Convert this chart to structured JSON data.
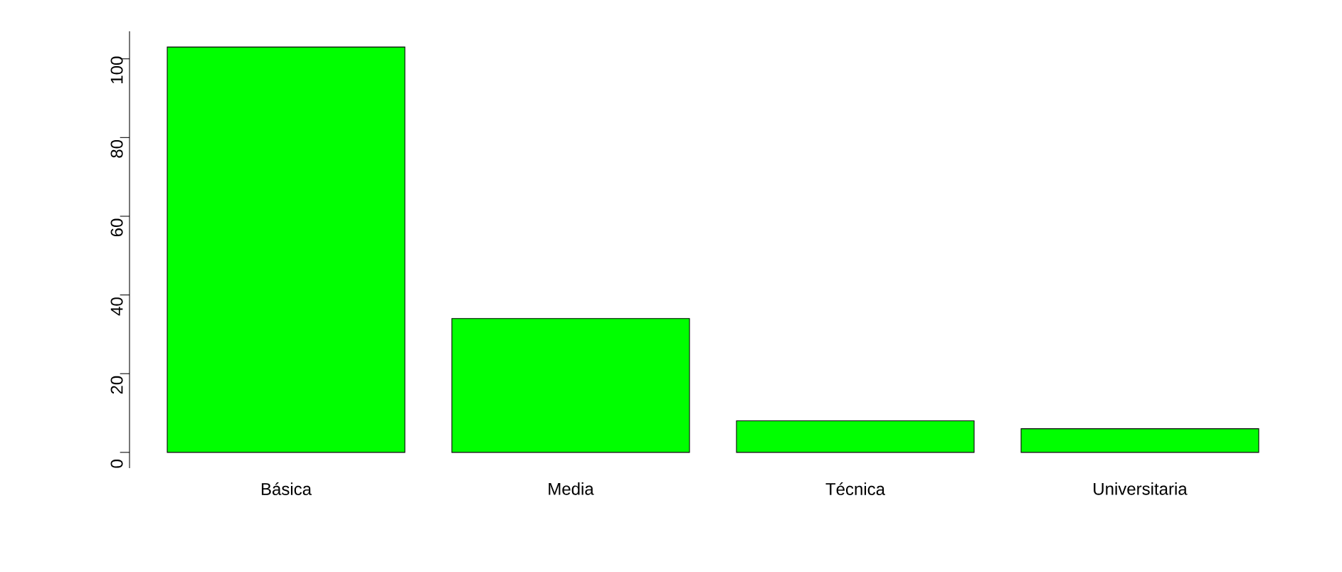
{
  "chart_data": {
    "type": "bar",
    "categories": [
      "Básica",
      "Media",
      "Técnica",
      "Universitaria"
    ],
    "values": [
      103,
      34,
      8,
      6
    ],
    "ylim": [
      -4,
      107
    ],
    "color": "#00ff00",
    "yticks": [
      0,
      20,
      40,
      60,
      80,
      100
    ]
  }
}
